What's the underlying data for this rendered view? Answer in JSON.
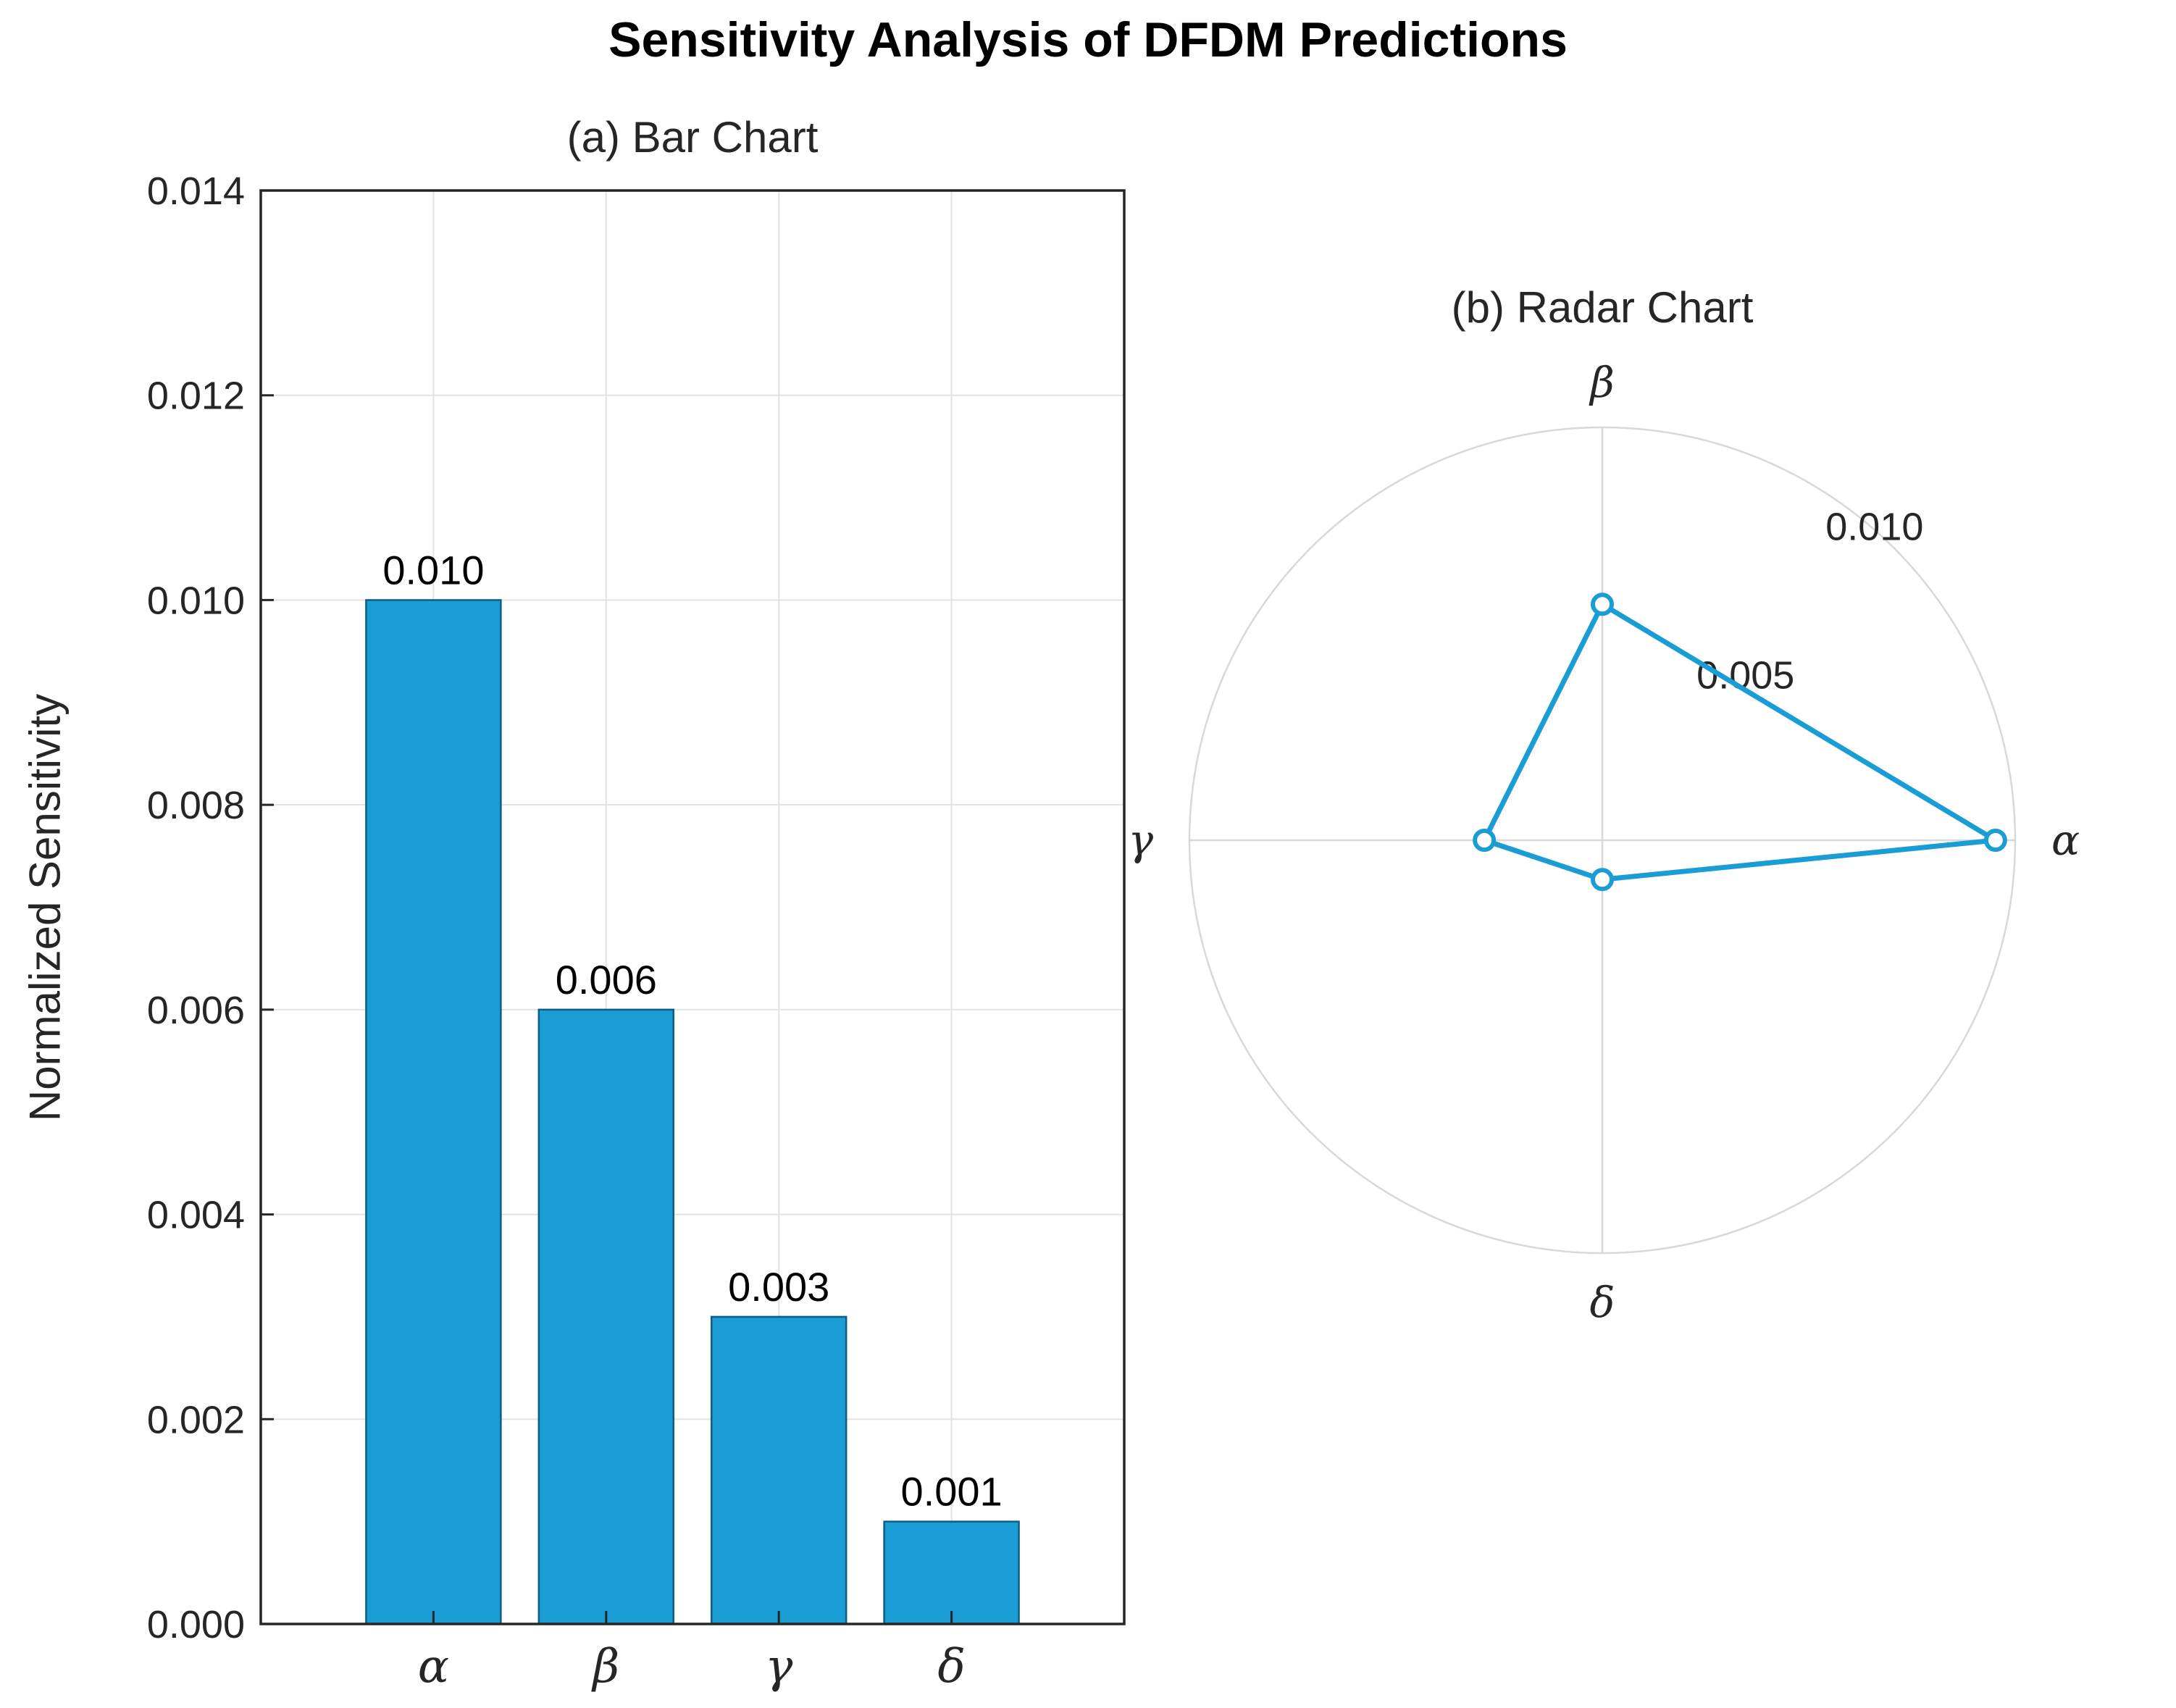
{
  "figure": {
    "title": "Sensitivity Analysis of DFDM Predictions"
  },
  "colors": {
    "accent": "#1a9cd4",
    "bar_edge": "#0d5e84",
    "grid": "#e2e2e2",
    "polar_grid": "#d8d8d8",
    "axis": "#262626",
    "text": "#262626",
    "label": "#000000"
  },
  "chart_data": [
    {
      "type": "bar",
      "title": "(a) Bar Chart",
      "ylabel": "Normalized Sensitivity",
      "categories": [
        "α",
        "β",
        "γ",
        "δ"
      ],
      "values": [
        0.01,
        0.006,
        0.003,
        0.001
      ],
      "value_labels": [
        "0.010",
        "0.006",
        "0.003",
        "0.001"
      ],
      "ylim": [
        0,
        0.014
      ],
      "ytick_step": 0.002,
      "ytick_labels": [
        "0.000",
        "0.002",
        "0.004",
        "0.006",
        "0.008",
        "0.010",
        "0.012",
        "0.014"
      ],
      "grid": true,
      "legend": "none"
    },
    {
      "type": "radar",
      "title": "(b) Radar Chart",
      "categories": [
        "α",
        "β",
        "γ",
        "δ"
      ],
      "angles_deg": [
        0,
        90,
        180,
        270
      ],
      "values": [
        0.01,
        0.006,
        0.003,
        0.001
      ],
      "rlim": [
        0,
        0.0105
      ],
      "rticks": [
        0.005,
        0.01
      ],
      "rtick_labels": [
        "0.005",
        "0.010"
      ],
      "rtick_angle_deg": 49,
      "grid": true,
      "legend": "none"
    }
  ]
}
